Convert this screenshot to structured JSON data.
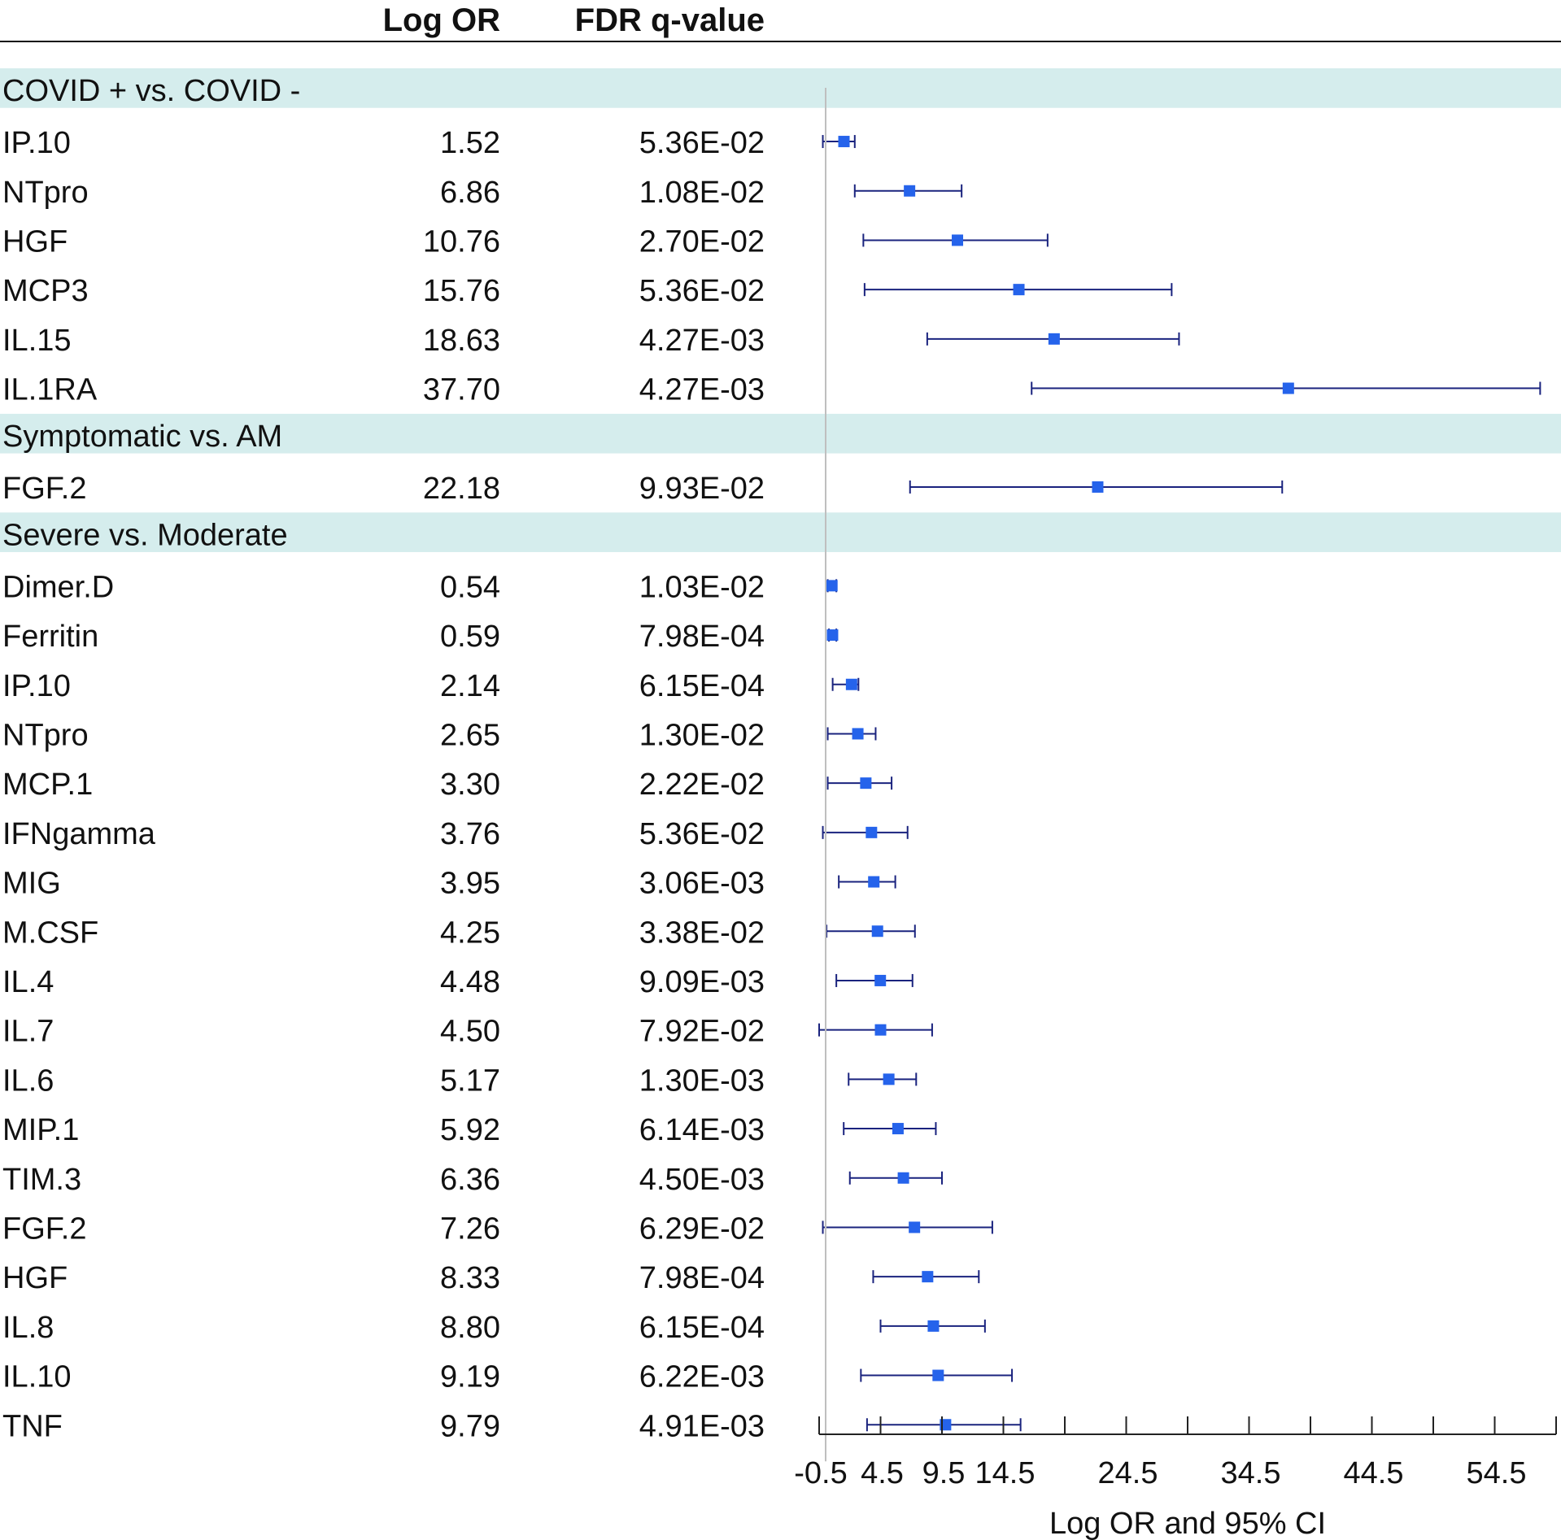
{
  "chart_data": {
    "type": "forest",
    "xlabel": "Log OR and 95% CI",
    "xlim": [
      -0.5,
      59.5
    ],
    "reference_line": -0.5,
    "ticks": [
      -0.5,
      4.5,
      9.5,
      14.5,
      19.5,
      24.5,
      29.5,
      34.5,
      39.5,
      44.5,
      49.5,
      54.5,
      59.5
    ],
    "tick_labels": [
      {
        "value": -0.5,
        "label": "-0.5"
      },
      {
        "value": 4.5,
        "label": "4.5"
      },
      {
        "value": 9.5,
        "label": "9.5"
      },
      {
        "value": 14.5,
        "label": "14.5"
      },
      {
        "value": 24.5,
        "label": "24.5"
      },
      {
        "value": 34.5,
        "label": "34.5"
      },
      {
        "value": 44.5,
        "label": "44.5"
      },
      {
        "value": 54.5,
        "label": "54.5"
      }
    ],
    "columns": {
      "estimate": "Log OR",
      "q": "FDR q-value"
    },
    "colors": {
      "band": "#d5eded",
      "marker": "#2563eb",
      "ci": "#1a237e",
      "refline": "#bfbfbf",
      "axis": "#222222",
      "rule": "#111111"
    },
    "groups": [
      {
        "name": "COVID + vs. COVID -",
        "rows": [
          {
            "label": "IP.10",
            "logor": "1.52",
            "q": "5.36E-02",
            "est": 1.52,
            "lo": -0.2,
            "hi": 2.4
          },
          {
            "label": "NTpro",
            "logor": "6.86",
            "q": "1.08E-02",
            "est": 6.86,
            "lo": 2.4,
            "hi": 11.1
          },
          {
            "label": "HGF",
            "logor": "10.76",
            "q": "2.70E-02",
            "est": 10.76,
            "lo": 3.1,
            "hi": 18.1
          },
          {
            "label": "MCP3",
            "logor": "15.76",
            "q": "5.36E-02",
            "est": 15.76,
            "lo": 3.2,
            "hi": 28.2
          },
          {
            "label": "IL.15",
            "logor": "18.63",
            "q": "4.27E-03",
            "est": 18.63,
            "lo": 8.3,
            "hi": 28.8
          },
          {
            "label": "IL.1RA",
            "logor": "37.70",
            "q": "4.27E-03",
            "est": 37.7,
            "lo": 16.8,
            "hi": 58.2
          }
        ]
      },
      {
        "name": "Symptomatic vs. AM",
        "rows": [
          {
            "label": "FGF.2",
            "logor": "22.18",
            "q": "9.93E-02",
            "est": 22.18,
            "lo": 6.9,
            "hi": 37.2
          }
        ]
      },
      {
        "name": "Severe vs. Moderate",
        "rows": [
          {
            "label": "Dimer.D",
            "logor": "0.54",
            "q": "1.03E-02",
            "est": 0.54,
            "lo": 0.2,
            "hi": 0.9
          },
          {
            "label": "Ferritin",
            "logor": "0.59",
            "q": "7.98E-04",
            "est": 0.59,
            "lo": 0.3,
            "hi": 0.9
          },
          {
            "label": "IP.10",
            "logor": "2.14",
            "q": "6.15E-04",
            "est": 2.14,
            "lo": 0.6,
            "hi": 2.7
          },
          {
            "label": "NTpro",
            "logor": "2.65",
            "q": "1.30E-02",
            "est": 2.65,
            "lo": 0.2,
            "hi": 4.1
          },
          {
            "label": "MCP.1",
            "logor": "3.30",
            "q": "2.22E-02",
            "est": 3.3,
            "lo": 0.2,
            "hi": 5.4
          },
          {
            "label": "IFNgamma",
            "logor": "3.76",
            "q": "5.36E-02",
            "est": 3.76,
            "lo": -0.2,
            "hi": 6.7
          },
          {
            "label": "MIG",
            "logor": "3.95",
            "q": "3.06E-03",
            "est": 3.95,
            "lo": 1.1,
            "hi": 5.7
          },
          {
            "label": "M.CSF",
            "logor": "4.25",
            "q": "3.38E-02",
            "est": 4.25,
            "lo": 0.1,
            "hi": 7.3
          },
          {
            "label": "IL.4",
            "logor": "4.48",
            "q": "9.09E-03",
            "est": 4.48,
            "lo": 0.9,
            "hi": 7.1
          },
          {
            "label": "IL.7",
            "logor": "4.50",
            "q": "7.92E-02",
            "est": 4.5,
            "lo": -0.5,
            "hi": 8.7
          },
          {
            "label": "IL.6",
            "logor": "5.17",
            "q": "1.30E-03",
            "est": 5.17,
            "lo": 1.9,
            "hi": 7.4
          },
          {
            "label": "MIP.1",
            "logor": "5.92",
            "q": "6.14E-03",
            "est": 5.92,
            "lo": 1.5,
            "hi": 9.0
          },
          {
            "label": "TIM.3",
            "logor": "6.36",
            "q": "4.50E-03",
            "est": 6.36,
            "lo": 2.0,
            "hi": 9.5
          },
          {
            "label": "FGF.2",
            "logor": "7.26",
            "q": "6.29E-02",
            "est": 7.26,
            "lo": -0.2,
            "hi": 13.6
          },
          {
            "label": "HGF",
            "logor": "8.33",
            "q": "7.98E-04",
            "est": 8.33,
            "lo": 3.9,
            "hi": 12.5
          },
          {
            "label": "IL.8",
            "logor": "8.80",
            "q": "6.15E-04",
            "est": 8.8,
            "lo": 4.5,
            "hi": 13.0
          },
          {
            "label": "IL.10",
            "logor": "9.19",
            "q": "6.22E-03",
            "est": 9.19,
            "lo": 2.9,
            "hi": 15.2
          },
          {
            "label": "TNF",
            "logor": "9.79",
            "q": "4.91E-03",
            "est": 9.79,
            "lo": 3.4,
            "hi": 15.9
          }
        ]
      }
    ]
  }
}
